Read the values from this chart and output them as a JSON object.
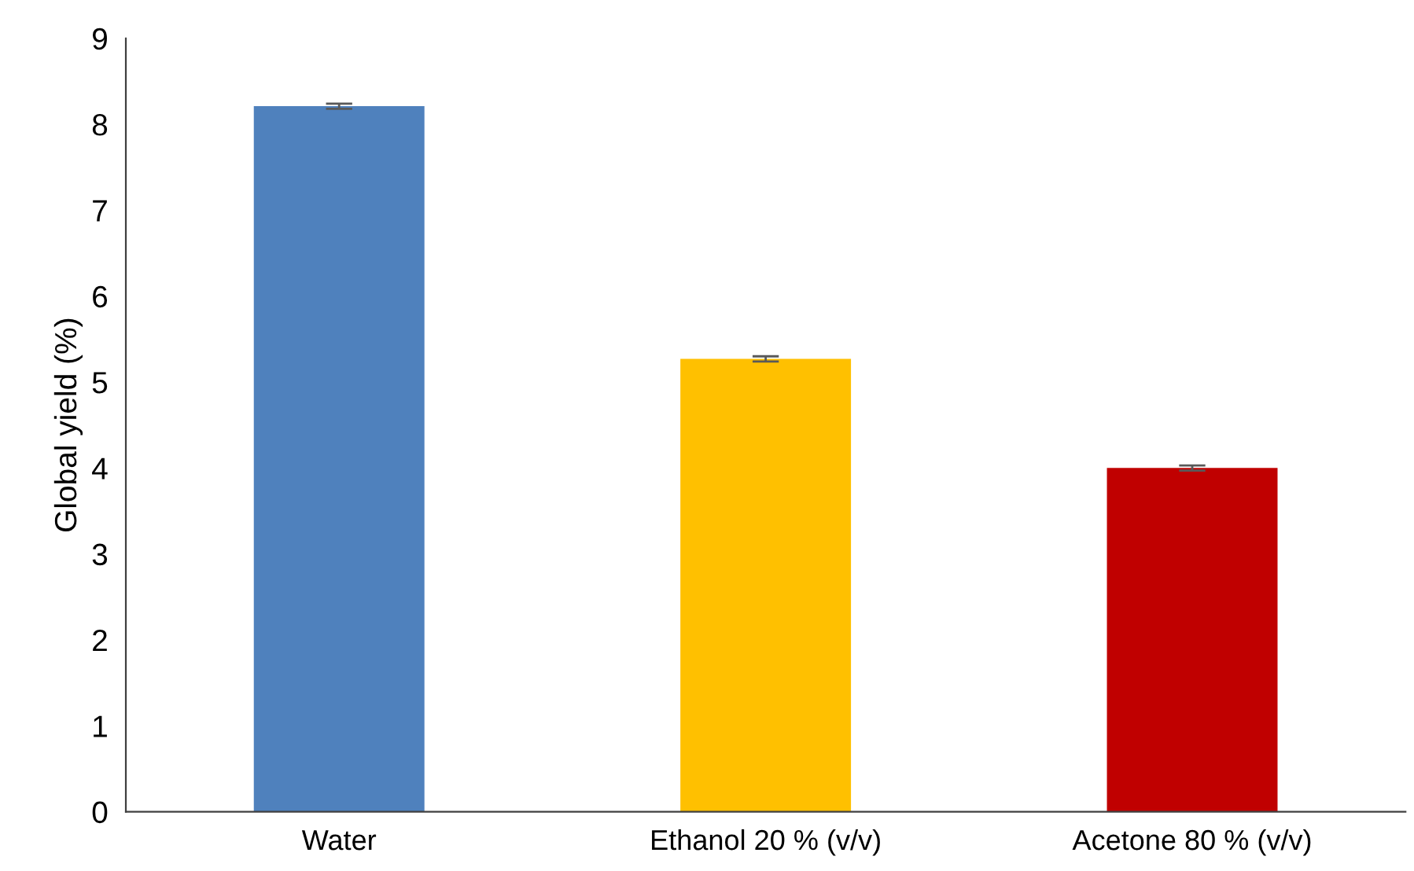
{
  "chart_data": {
    "type": "bar",
    "ylabel": "Global yield (%)",
    "categories": [
      "Water",
      "Ethanol 20 % (v/v)",
      "Acetone 80 % (v/v)"
    ],
    "values": [
      8.21,
      5.27,
      4.0
    ],
    "errors": [
      0.03,
      0.03,
      0.03
    ],
    "colors": [
      "#4f81bd",
      "#ffc000",
      "#c00000"
    ],
    "ylim": [
      0,
      9
    ],
    "yticks": [
      0,
      1,
      2,
      3,
      4,
      5,
      6,
      7,
      8,
      9
    ],
    "grid": false,
    "legend": false
  }
}
